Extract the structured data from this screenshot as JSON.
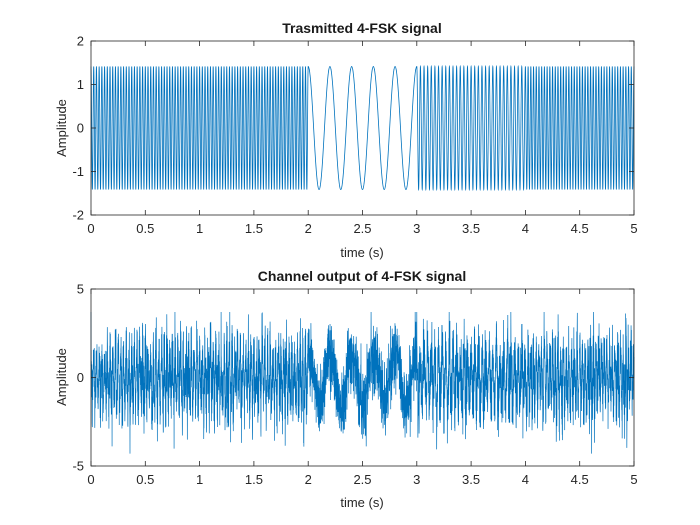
{
  "chart_data": [
    {
      "type": "line",
      "title": "Trasmitted 4-FSK signal",
      "xlabel": "time (s)",
      "ylabel": "Amplitude",
      "xlim": [
        0,
        5
      ],
      "ylim": [
        -2,
        2
      ],
      "xticks": [
        0,
        0.5,
        1,
        1.5,
        2,
        2.5,
        3,
        3.5,
        4,
        4.5,
        5
      ],
      "yticks": [
        -2,
        -1,
        0,
        1,
        2
      ],
      "grid": false,
      "series_color": "#0072BD",
      "amplitude": 1.414,
      "symbols": [
        {
          "t_start": 0,
          "t_end": 1,
          "frequency_hz": 40
        },
        {
          "t_start": 1,
          "t_end": 2,
          "frequency_hz": 40
        },
        {
          "t_start": 2,
          "t_end": 3,
          "frequency_hz": 5
        },
        {
          "t_start": 3,
          "t_end": 4,
          "frequency_hz": 30
        },
        {
          "t_start": 4,
          "t_end": 5,
          "frequency_hz": 40
        }
      ]
    },
    {
      "type": "line",
      "title": "Channel output of 4-FSK signal",
      "xlabel": "time (s)",
      "ylabel": "Amplitude",
      "xlim": [
        0,
        5
      ],
      "ylim": [
        -5,
        5
      ],
      "xticks": [
        0,
        0.5,
        1,
        1.5,
        2,
        2.5,
        3,
        3.5,
        4,
        4.5,
        5
      ],
      "yticks": [
        -5,
        0,
        5
      ],
      "grid": false,
      "series_color": "#0072BD",
      "noise_std": 1.0,
      "min_value": -4.3,
      "max_value": 3.7
    }
  ]
}
